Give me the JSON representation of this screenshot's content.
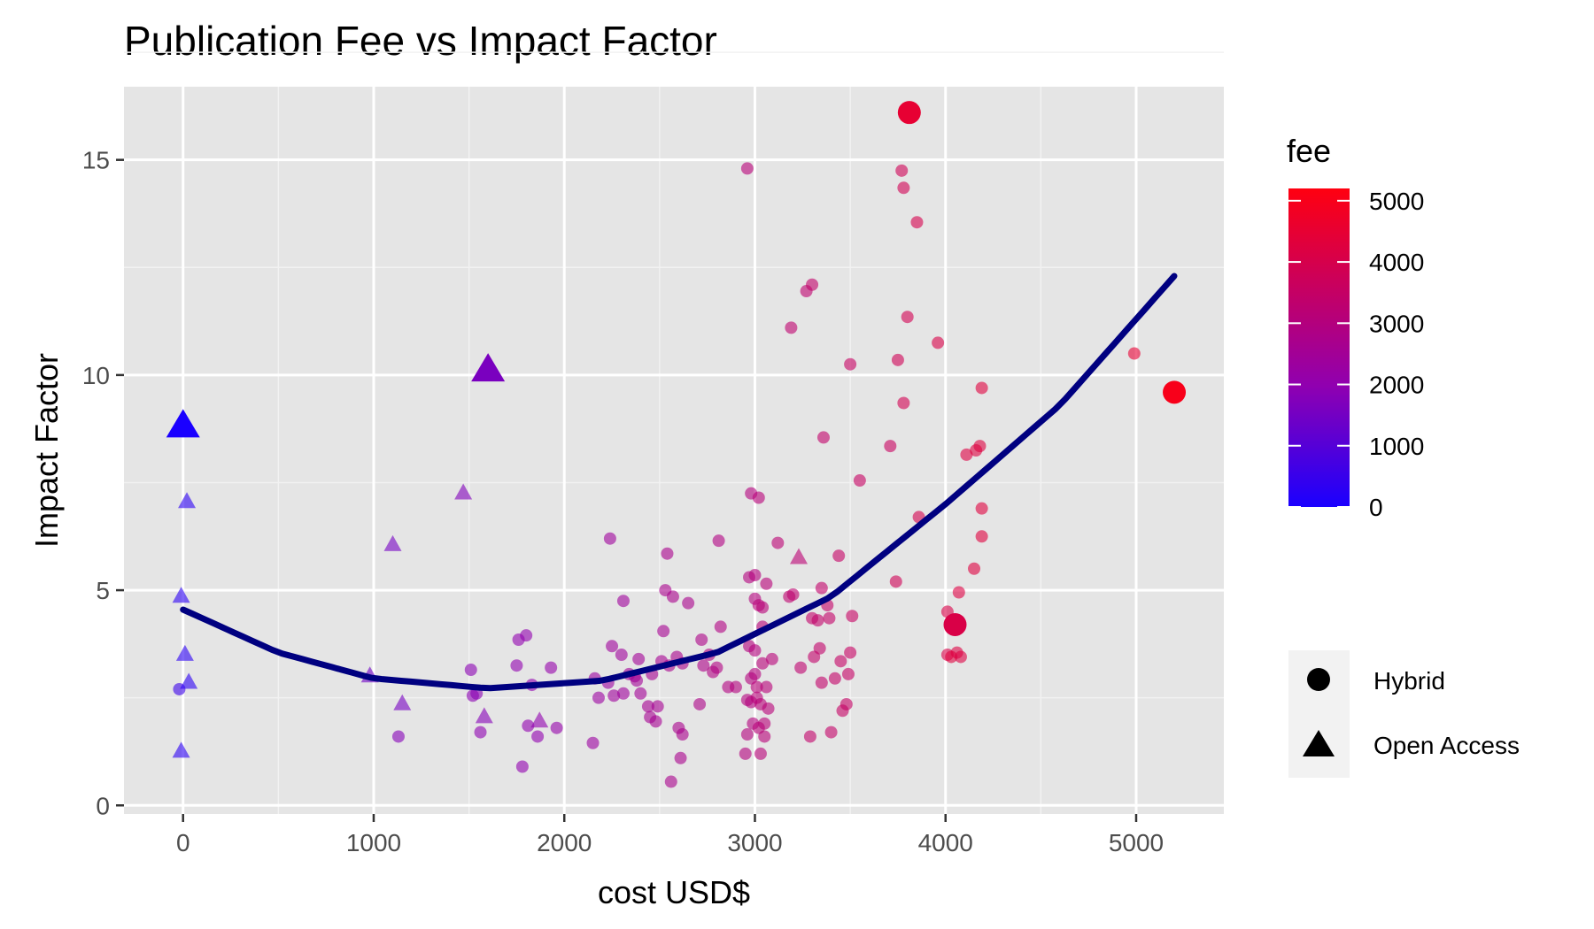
{
  "chart_data": {
    "type": "scatter",
    "title": "Publication Fee vs Impact Factor",
    "xlabel": "cost USD$",
    "ylabel": "Impact Factor",
    "xlim": [
      -310,
      5460
    ],
    "ylim": [
      -0.2,
      16.7
    ],
    "x_ticks": [
      0,
      1000,
      2000,
      3000,
      4000,
      5000
    ],
    "y_ticks": [
      0,
      5,
      10,
      15
    ],
    "grid": true,
    "color_scale": {
      "title": "fee",
      "low_color": "#1a00ff",
      "mid_color": "#9000b0",
      "high_color": "#ff0010",
      "min": 0,
      "max": 5200,
      "ticks": [
        0,
        1000,
        2000,
        3000,
        4000,
        5000
      ]
    },
    "shape_legend": {
      "entries": [
        {
          "label": "Hybrid",
          "shape": "circle"
        },
        {
          "label": "Open Access",
          "shape": "triangle"
        }
      ]
    },
    "trend_line": {
      "type": "quadratic fit",
      "color": "#000080",
      "points": [
        [
          0,
          4.55
        ],
        [
          500,
          3.55
        ],
        [
          1000,
          2.95
        ],
        [
          1600,
          2.72
        ],
        [
          2200,
          2.9
        ],
        [
          2800,
          3.55
        ],
        [
          3400,
          4.85
        ],
        [
          4000,
          7.0
        ],
        [
          4600,
          9.3
        ],
        [
          5200,
          12.3
        ]
      ]
    },
    "series": [
      {
        "name": "Hybrid",
        "shape": "circle",
        "points": [
          [
            -20,
            2.7
          ],
          [
            1130,
            1.6
          ],
          [
            1510,
            3.15
          ],
          [
            1520,
            2.55
          ],
          [
            1540,
            2.6
          ],
          [
            1560,
            1.7
          ],
          [
            1750,
            3.25
          ],
          [
            1760,
            3.85
          ],
          [
            1780,
            0.9
          ],
          [
            1800,
            3.95
          ],
          [
            1810,
            1.85
          ],
          [
            1830,
            2.8
          ],
          [
            1860,
            1.6
          ],
          [
            1930,
            3.2
          ],
          [
            1960,
            1.8
          ],
          [
            2150,
            1.45
          ],
          [
            2160,
            2.95
          ],
          [
            2180,
            2.5
          ],
          [
            2230,
            2.85
          ],
          [
            2240,
            6.2
          ],
          [
            2250,
            3.7
          ],
          [
            2260,
            2.55
          ],
          [
            2300,
            3.5
          ],
          [
            2310,
            4.75
          ],
          [
            2310,
            2.6
          ],
          [
            2340,
            3.05
          ],
          [
            2370,
            3.0
          ],
          [
            2380,
            2.9
          ],
          [
            2390,
            3.4
          ],
          [
            2400,
            2.6
          ],
          [
            2440,
            2.3
          ],
          [
            2450,
            2.05
          ],
          [
            2460,
            3.05
          ],
          [
            2480,
            1.95
          ],
          [
            2490,
            2.3
          ],
          [
            2510,
            3.35
          ],
          [
            2520,
            4.05
          ],
          [
            2530,
            5.0
          ],
          [
            2540,
            5.85
          ],
          [
            2550,
            3.25
          ],
          [
            2560,
            0.55
          ],
          [
            2570,
            4.85
          ],
          [
            2590,
            3.45
          ],
          [
            2600,
            1.8
          ],
          [
            2610,
            1.1
          ],
          [
            2620,
            1.65
          ],
          [
            2620,
            3.3
          ],
          [
            2650,
            4.7
          ],
          [
            2710,
            2.35
          ],
          [
            2720,
            3.85
          ],
          [
            2730,
            3.25
          ],
          [
            2760,
            3.5
          ],
          [
            2780,
            3.1
          ],
          [
            2800,
            3.2
          ],
          [
            2810,
            6.15
          ],
          [
            2820,
            4.15
          ],
          [
            2860,
            2.75
          ],
          [
            2900,
            2.75
          ],
          [
            2950,
            1.2
          ],
          [
            2960,
            1.65
          ],
          [
            2960,
            14.8
          ],
          [
            2960,
            2.45
          ],
          [
            2970,
            3.7
          ],
          [
            2970,
            5.3
          ],
          [
            2980,
            7.25
          ],
          [
            2980,
            2.4
          ],
          [
            2980,
            2.95
          ],
          [
            2990,
            1.9
          ],
          [
            3000,
            3.6
          ],
          [
            3000,
            4.8
          ],
          [
            3000,
            5.35
          ],
          [
            3000,
            3.05
          ],
          [
            3010,
            2.75
          ],
          [
            3010,
            2.5
          ],
          [
            3020,
            4.65
          ],
          [
            3020,
            1.8
          ],
          [
            3020,
            7.15
          ],
          [
            3030,
            1.2
          ],
          [
            3030,
            2.35
          ],
          [
            3040,
            4.6
          ],
          [
            3040,
            4.15
          ],
          [
            3040,
            3.3
          ],
          [
            3050,
            1.9
          ],
          [
            3050,
            1.6
          ],
          [
            3060,
            5.15
          ],
          [
            3060,
            2.75
          ],
          [
            3070,
            2.25
          ],
          [
            3090,
            3.4
          ],
          [
            3120,
            6.1
          ],
          [
            3180,
            4.85
          ],
          [
            3190,
            11.1
          ],
          [
            3200,
            4.9
          ],
          [
            3240,
            3.2
          ],
          [
            3270,
            11.95
          ],
          [
            3290,
            1.6
          ],
          [
            3300,
            4.35
          ],
          [
            3300,
            12.1
          ],
          [
            3310,
            3.45
          ],
          [
            3330,
            4.3
          ],
          [
            3340,
            3.65
          ],
          [
            3350,
            5.05
          ],
          [
            3350,
            2.85
          ],
          [
            3360,
            8.55
          ],
          [
            3380,
            4.65
          ],
          [
            3390,
            4.35
          ],
          [
            3400,
            1.7
          ],
          [
            3420,
            2.95
          ],
          [
            3440,
            5.8
          ],
          [
            3450,
            3.35
          ],
          [
            3460,
            2.2
          ],
          [
            3480,
            2.35
          ],
          [
            3490,
            3.05
          ],
          [
            3500,
            10.25
          ],
          [
            3500,
            3.55
          ],
          [
            3510,
            4.4
          ],
          [
            3550,
            7.55
          ],
          [
            3710,
            8.35
          ],
          [
            3740,
            5.2
          ],
          [
            3750,
            10.35
          ],
          [
            3770,
            14.75
          ],
          [
            3780,
            14.35
          ],
          [
            3780,
            9.35
          ],
          [
            3800,
            11.35
          ],
          [
            3810,
            16.1
          ],
          [
            3850,
            13.55
          ],
          [
            3860,
            6.7
          ],
          [
            3960,
            10.75
          ],
          [
            4010,
            3.5
          ],
          [
            4010,
            4.5
          ],
          [
            4030,
            3.45
          ],
          [
            4050,
            4.2
          ],
          [
            4060,
            3.55
          ],
          [
            4070,
            4.95
          ],
          [
            4080,
            3.45
          ],
          [
            4110,
            8.15
          ],
          [
            4150,
            5.5
          ],
          [
            4160,
            8.25
          ],
          [
            4180,
            8.35
          ],
          [
            4190,
            9.7
          ],
          [
            4190,
            6.9
          ],
          [
            4190,
            6.25
          ],
          [
            4990,
            10.5
          ],
          [
            5200,
            9.6
          ]
        ],
        "fees": [
          550,
          1800,
          1900,
          1900,
          1900,
          1950,
          2000,
          2000,
          2000,
          2000,
          2000,
          2000,
          2000,
          2100,
          2100,
          2300,
          2300,
          2300,
          2300,
          2400,
          2400,
          2400,
          2400,
          2400,
          2400,
          2500,
          2500,
          2500,
          2500,
          2500,
          2600,
          2600,
          2600,
          2600,
          2600,
          2600,
          2600,
          2700,
          2700,
          2700,
          2700,
          2700,
          2700,
          2700,
          2700,
          2700,
          2700,
          2700,
          2800,
          2800,
          2800,
          2900,
          2900,
          2900,
          2900,
          2900,
          2950,
          3000,
          3000,
          3000,
          3100,
          3000,
          3000,
          3000,
          3000,
          3000,
          3000,
          3000,
          3000,
          3000,
          3000,
          3000,
          3100,
          3100,
          3100,
          3100,
          3100,
          3100,
          3100,
          3100,
          3100,
          3100,
          3100,
          3100,
          3100,
          3100,
          3100,
          3100,
          3200,
          3300,
          3300,
          3300,
          3300,
          3300,
          3400,
          3400,
          3400,
          3400,
          3400,
          3400,
          3400,
          3400,
          3400,
          3450,
          3450,
          3450,
          3450,
          3500,
          3500,
          3500,
          3500,
          3500,
          3550,
          3550,
          3550,
          3550,
          3600,
          3800,
          3800,
          3800,
          3850,
          3900,
          3900,
          4500,
          4000,
          3950,
          4100,
          4100,
          4100,
          4300,
          4100,
          4200,
          4200,
          4200,
          4200,
          4250,
          4250,
          4250,
          4300,
          4300,
          4300,
          4500,
          5000
        ]
      },
      {
        "name": "Open Access",
        "shape": "triangle",
        "points": [
          [
            0,
            8.8
          ],
          [
            20,
            7.05
          ],
          [
            -10,
            4.85
          ],
          [
            10,
            3.5
          ],
          [
            30,
            2.85
          ],
          [
            -10,
            1.25
          ],
          [
            980,
            3.0
          ],
          [
            1100,
            6.05
          ],
          [
            1150,
            2.35
          ],
          [
            1470,
            7.25
          ],
          [
            1580,
            2.05
          ],
          [
            1600,
            10.1
          ],
          [
            1870,
            1.95
          ],
          [
            3230,
            5.75
          ]
        ],
        "fees": [
          0,
          300,
          300,
          300,
          300,
          300,
          1400,
          1500,
          1550,
          1700,
          1800,
          1600,
          2000,
          3200
        ]
      }
    ],
    "highlighted": [
      {
        "series": "Hybrid",
        "point": [
          3810,
          16.1
        ]
      },
      {
        "series": "Hybrid",
        "point": [
          5200,
          9.6
        ]
      },
      {
        "series": "Hybrid",
        "point": [
          4050,
          4.2
        ]
      },
      {
        "series": "Open Access",
        "point": [
          0,
          8.8
        ]
      },
      {
        "series": "Open Access",
        "point": [
          1600,
          10.1
        ]
      }
    ]
  }
}
